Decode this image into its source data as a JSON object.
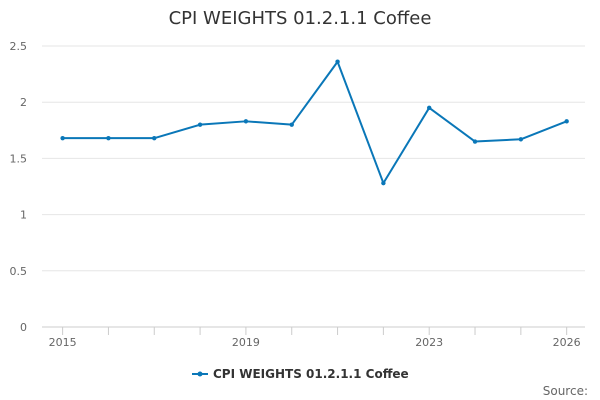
{
  "chart_data": {
    "type": "line",
    "title": "CPI WEIGHTS 01.2.1.1 Coffee",
    "x": [
      2015,
      2016,
      2017,
      2018,
      2019,
      2020,
      2021,
      2022,
      2023,
      2024,
      2025,
      2026
    ],
    "x_tick_labels": [
      "2015",
      "2019",
      "2023",
      "2026"
    ],
    "x_ticks": [
      2015,
      2019,
      2023,
      2026
    ],
    "y_tick_labels": [
      "0",
      "0.5",
      "1",
      "1.5",
      "2",
      "2.5"
    ],
    "y_ticks": [
      0,
      0.5,
      1,
      1.5,
      2,
      2.5
    ],
    "ylim": [
      0,
      2.5
    ],
    "grid": true,
    "series": [
      {
        "name": "CPI WEIGHTS 01.2.1.1 Coffee",
        "color": "#0a77b8",
        "values": [
          1.68,
          1.68,
          1.68,
          1.8,
          1.83,
          1.8,
          2.36,
          1.28,
          1.95,
          1.65,
          1.67,
          1.83
        ]
      }
    ],
    "legend_position": "bottom-center",
    "source_label": "Source:"
  }
}
